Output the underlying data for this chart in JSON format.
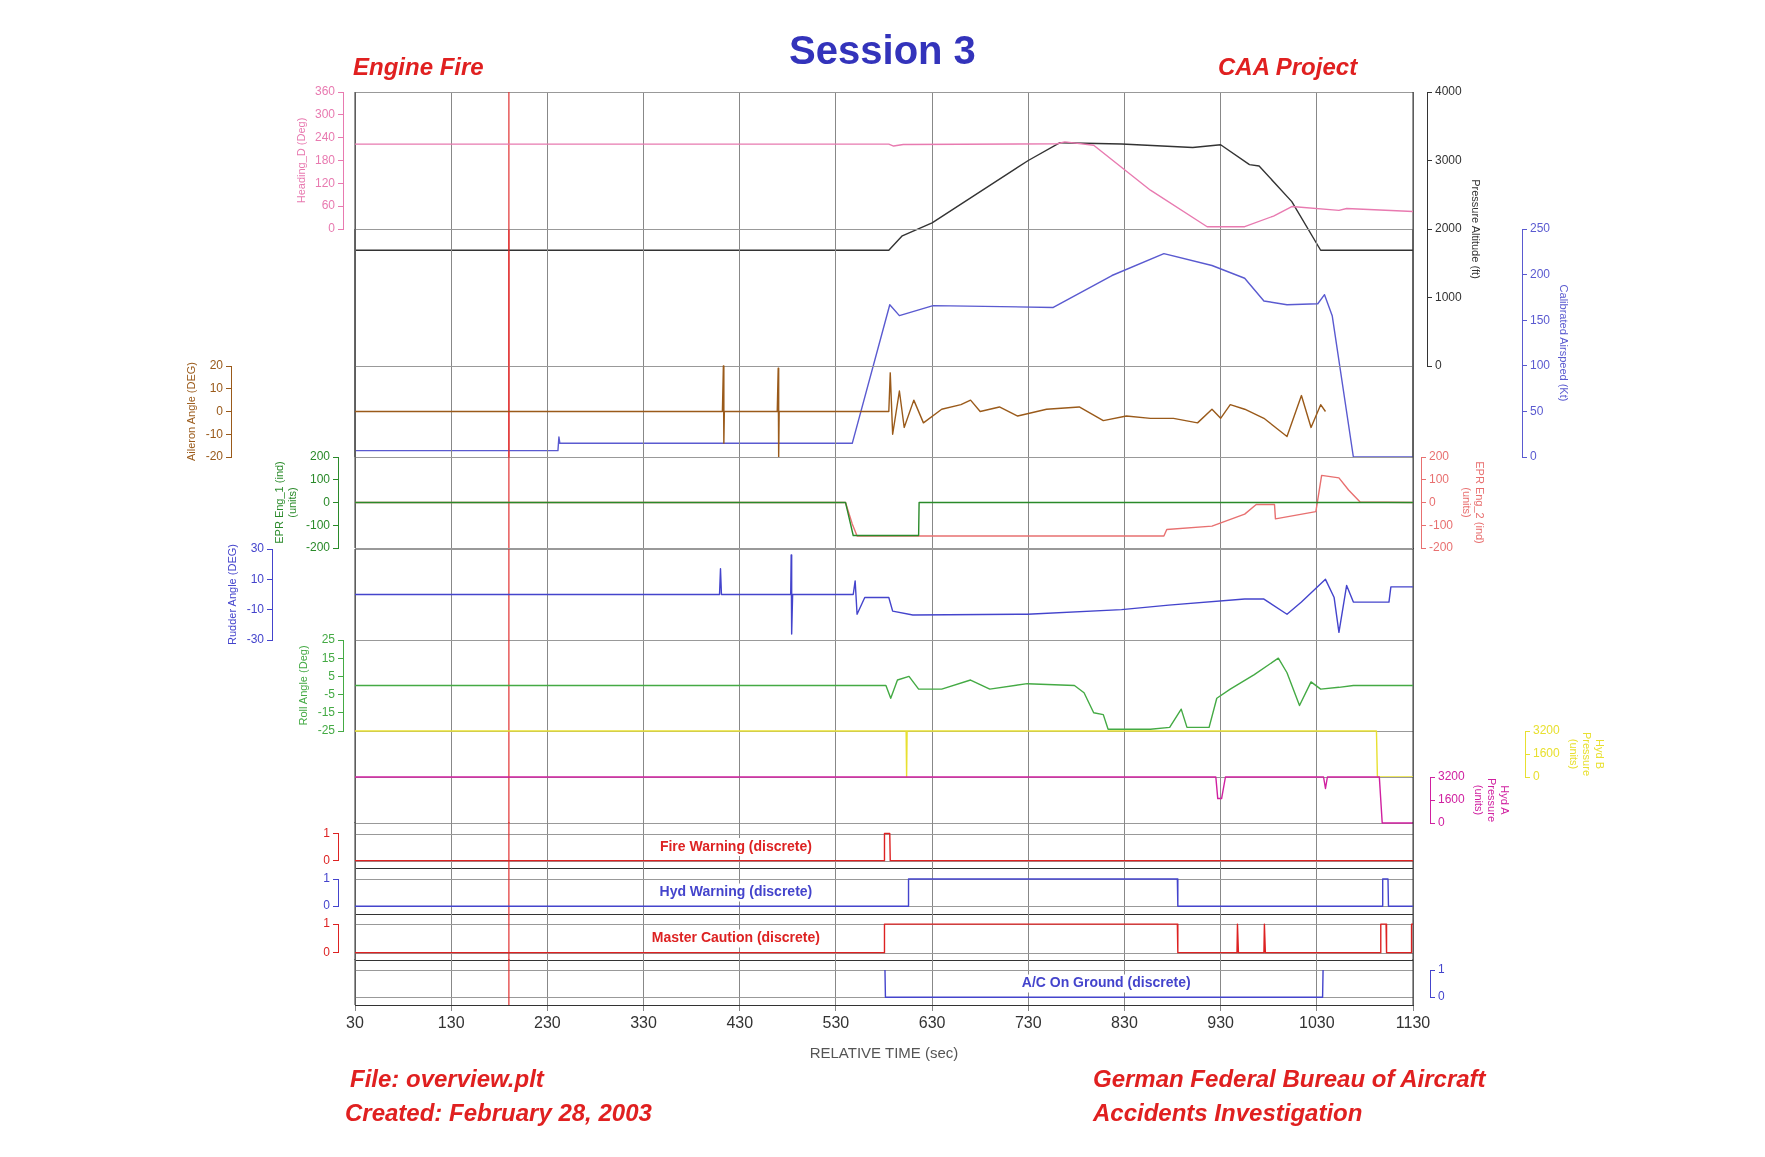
{
  "chart_data": [
    {
      "type": "line",
      "title": "Session 3",
      "annotations": [
        "Engine Fire",
        "CAA Project",
        "File: overview.plt",
        "Created: February 28, 2003",
        "German Federal Bureau of Aircraft Accidents Investigation"
      ],
      "ylabel": "Heading_D (Deg)",
      "y2label": "Pressure Altitude (ft)",
      "xlim": [
        30,
        1130
      ],
      "xticks": [
        30,
        130,
        230,
        330,
        430,
        530,
        630,
        730,
        830,
        930,
        1030,
        1130
      ],
      "tick_labels": "y",
      "ylim": [
        0,
        360
      ],
      "yticks": [
        0,
        60,
        120,
        180,
        240,
        300,
        360
      ],
      "y2lim": [
        0,
        4000
      ],
      "y2ticks": [
        0,
        1000,
        2000,
        3000,
        4000
      ],
      "grid": true,
      "marker": "none",
      "ref_lines": [
        {
          "axis": "x",
          "value": 190,
          "color": "#e03030"
        }
      ],
      "series": [
        {
          "axis": "y",
          "color": "#e87ab0",
          "x": [
            30,
            585,
            590,
            600,
            760,
            768,
            798,
            857,
            916,
            955,
            985,
            1004,
            1053,
            1061,
            1130
          ],
          "values": [
            223,
            223,
            218,
            222,
            224,
            229,
            220,
            102,
            6,
            6,
            34,
            59,
            49,
            54,
            46
          ]
        },
        {
          "axis": "y2",
          "color": "#333333",
          "x": [
            30,
            585,
            599,
            630,
            730,
            763,
            827,
            901,
            930,
            960,
            970,
            1004,
            1034,
            1130
          ],
          "values": [
            1690,
            1690,
            1900,
            2090,
            3000,
            3260,
            3240,
            3190,
            3230,
            2940,
            2920,
            2400,
            1690,
            1690
          ]
        }
      ]
    },
    {
      "type": "line",
      "y2label": "Calibrated Airspeed (Kt)",
      "xlim": [
        30,
        1130
      ],
      "xticks": [
        30,
        130,
        230,
        330,
        430,
        530,
        630,
        730,
        830,
        930,
        1030,
        1130
      ],
      "tick_labels": "y",
      "y2lim": [
        0,
        250
      ],
      "y2ticks": [
        0,
        50,
        100,
        150,
        200,
        250
      ],
      "grid": true,
      "marker": "none",
      "ref_lines": [
        {
          "axis": "x",
          "value": 190,
          "color": "#e03030"
        }
      ],
      "series": [
        {
          "axis": "y2",
          "color": "#5a5ad0",
          "x": [
            30,
            241,
            242,
            243,
            547,
            586,
            596,
            631,
            756,
            817,
            871,
            921,
            955,
            975,
            999,
            1031,
            1038,
            1046,
            1068,
            1130
          ],
          "values": [
            7,
            7,
            22,
            15,
            15,
            167,
            155,
            166,
            164,
            199,
            223,
            210,
            196,
            171,
            167,
            168,
            178,
            155,
            0,
            0
          ]
        }
      ]
    },
    {
      "type": "line",
      "ylabel": "Aileron Angle (DEG)",
      "xlim": [
        30,
        1130
      ],
      "xticks": [
        30,
        130,
        230,
        330,
        430,
        530,
        630,
        730,
        830,
        930,
        1030,
        1130
      ],
      "tick_labels": "y",
      "ylim": [
        -20,
        20
      ],
      "yticks": [
        -20,
        -10,
        0,
        10,
        20
      ],
      "grid": true,
      "marker": "none",
      "ref_lines": [
        {
          "axis": "x",
          "value": 190,
          "color": "#e03030"
        }
      ],
      "series": [
        {
          "axis": "y",
          "color": "#9a5a1a",
          "x": [
            30,
            412,
            413,
            413.5,
            414,
            469,
            470,
            470.5,
            471,
            585,
            586.5,
            589,
            596,
            601,
            611,
            621,
            640,
            660,
            670,
            680,
            700,
            719,
            749,
            783,
            808,
            832,
            857,
            881,
            906,
            921,
            930,
            940,
            955,
            975,
            999,
            1014,
            1024,
            1034,
            1039
          ],
          "values": [
            0,
            0,
            20,
            -14,
            0,
            0,
            19,
            -20,
            0,
            0,
            17,
            -10,
            9,
            -7,
            5,
            -5,
            1,
            3,
            5,
            0,
            2,
            -2,
            1,
            2,
            -4,
            -2,
            -3,
            -3,
            -5,
            1,
            -3,
            3,
            1,
            -3,
            -11,
            7,
            -7,
            3,
            0
          ]
        }
      ]
    },
    {
      "type": "line",
      "ylabel": "EPR Eng_1 (ind) (units)",
      "y2label": "EPR Eng_2 (ind) (units)",
      "xlim": [
        30,
        1130
      ],
      "xticks": [
        30,
        130,
        230,
        330,
        430,
        530,
        630,
        730,
        830,
        930,
        1030,
        1130
      ],
      "tick_labels": "y",
      "ylim": [
        -200,
        200
      ],
      "yticks": [
        -200,
        -100,
        0,
        100,
        200
      ],
      "y2lim": [
        -200,
        200
      ],
      "y2ticks": [
        -200,
        -100,
        0,
        100,
        200
      ],
      "grid": true,
      "marker": "none",
      "ref_lines": [
        {
          "axis": "x",
          "value": 190,
          "color": "#e03030"
        }
      ],
      "series": [
        {
          "axis": "y",
          "color": "#2a8a2a",
          "x": [
            30,
            540,
            548,
            616,
            616.5,
            1130
          ],
          "values": [
            0,
            0,
            -145,
            -145,
            0,
            0
          ]
        },
        {
          "axis": "y2",
          "color": "#e87070",
          "x": [
            30,
            540,
            547,
            552,
            871,
            874,
            921,
            955,
            967,
            986,
            987,
            1029,
            1035,
            1053,
            1063,
            1075,
            1130
          ],
          "values": [
            0,
            0,
            -94,
            -147,
            -147,
            -119,
            -104,
            -51,
            -9,
            -9,
            -72,
            -40,
            119,
            108,
            55,
            2,
            0
          ]
        }
      ]
    },
    {
      "type": "line",
      "ylabel": "Rudder Angle (DEG)",
      "xlim": [
        30,
        1130
      ],
      "xticks": [
        30,
        130,
        230,
        330,
        430,
        530,
        630,
        730,
        830,
        930,
        1030,
        1130
      ],
      "tick_labels": "y",
      "ylim": [
        -30,
        30
      ],
      "yticks": [
        -30,
        -10,
        10,
        30
      ],
      "grid": true,
      "marker": "none",
      "ref_lines": [
        {
          "axis": "x",
          "value": 190,
          "color": "#e03030"
        }
      ],
      "series": [
        {
          "axis": "y",
          "color": "#4444cc",
          "x": [
            30,
            409,
            410,
            411,
            483,
            483.5,
            484,
            485,
            548,
            550,
            552,
            560,
            585,
            589,
            610,
            729,
            827,
            876,
            955,
            975,
            999,
            1014,
            1039,
            1048,
            1053,
            1061,
            1068,
            1105,
            1107,
            1130
          ],
          "values": [
            0,
            0,
            17,
            0,
            0,
            26,
            -26,
            0,
            0,
            9,
            -13,
            -2,
            -2,
            -11,
            -13.5,
            -13,
            -10,
            -7,
            -3,
            -3,
            -13,
            -5,
            10,
            -2,
            -25,
            6,
            -5,
            -5,
            5,
            5
          ]
        }
      ]
    },
    {
      "type": "line",
      "ylabel": "Roll Angle (Deg)",
      "xlim": [
        30,
        1130
      ],
      "xticks": [
        30,
        130,
        230,
        330,
        430,
        530,
        630,
        730,
        830,
        930,
        1030,
        1130
      ],
      "tick_labels": "y",
      "ylim": [
        -25,
        25
      ],
      "yticks": [
        -25,
        -15,
        -5,
        5,
        15,
        25
      ],
      "grid": true,
      "marker": "none",
      "ref_lines": [
        {
          "axis": "x",
          "value": 190,
          "color": "#e03030"
        }
      ],
      "series": [
        {
          "axis": "y",
          "color": "#44aa44",
          "x": [
            30,
            582,
            587,
            594,
            606,
            616,
            640,
            670,
            690,
            729,
            778,
            788,
            798,
            808,
            813,
            857,
            877,
            889,
            895,
            918,
            926,
            940,
            965,
            990,
            999,
            1012,
            1024,
            1034,
            1053,
            1068,
            1130
          ],
          "values": [
            0,
            0,
            -7,
            3,
            5,
            -2,
            -2,
            3,
            -2,
            1,
            0,
            -4,
            -15,
            -16,
            -24,
            -24,
            -23,
            -13,
            -23,
            -23,
            -7,
            -2,
            6,
            15,
            7,
            -11,
            2,
            -2,
            -1,
            0,
            0
          ]
        }
      ]
    },
    {
      "type": "line",
      "y2label": "Hyd B Pressure (units)",
      "xlim": [
        30,
        1130
      ],
      "xticks": [
        30,
        130,
        230,
        330,
        430,
        530,
        630,
        730,
        830,
        930,
        1030,
        1130
      ],
      "tick_labels": "y",
      "y2lim": [
        0,
        3200
      ],
      "y2ticks": [
        0,
        1600,
        3200
      ],
      "grid": true,
      "marker": "none",
      "ref_lines": [
        {
          "axis": "x",
          "value": 190,
          "color": "#e03030"
        }
      ],
      "series": [
        {
          "axis": "y2",
          "color": "#e8e030",
          "x": [
            30,
            603,
            603.5,
            604,
            1092,
            1093,
            1130
          ],
          "values": [
            3200,
            3200,
            0,
            3200,
            3200,
            0,
            0
          ]
        }
      ]
    },
    {
      "type": "line",
      "y2label": "Hyd A Pressure (units)",
      "xlim": [
        30,
        1130
      ],
      "xticks": [
        30,
        130,
        230,
        330,
        430,
        530,
        630,
        730,
        830,
        930,
        1030,
        1130
      ],
      "tick_labels": "y",
      "y2lim": [
        0,
        3200
      ],
      "y2ticks": [
        0,
        1600,
        3200
      ],
      "grid": true,
      "marker": "none",
      "ref_lines": [
        {
          "axis": "x",
          "value": 190,
          "color": "#e03030"
        }
      ],
      "series": [
        {
          "axis": "y2",
          "color": "#d020a0",
          "x": [
            30,
            925,
            927,
            931,
            935,
            1037,
            1039,
            1041,
            1095,
            1098,
            1130
          ],
          "values": [
            3200,
            3200,
            1700,
            1700,
            3200,
            3200,
            2400,
            3200,
            3200,
            0,
            0
          ]
        }
      ]
    },
    {
      "type": "line",
      "xlim": [
        30,
        1130
      ],
      "xticks": [
        30,
        130,
        230,
        330,
        430,
        530,
        630,
        730,
        830,
        930,
        1030,
        1130
      ],
      "tick_labels": "y",
      "ylim": [
        0,
        1
      ],
      "yticks": [
        0,
        1
      ],
      "grid": true,
      "marker": "none",
      "ref_lines": [
        {
          "axis": "x",
          "value": 190,
          "color": "#e03030"
        }
      ],
      "series": [
        {
          "axis": "y",
          "name": "Fire Warning (discrete)",
          "color": "#dd2222",
          "x": [
            30,
            580,
            580.5,
            586,
            586.5,
            1130
          ],
          "values": [
            0,
            0,
            1,
            1,
            0,
            0
          ]
        }
      ]
    },
    {
      "type": "line",
      "xlim": [
        30,
        1130
      ],
      "xticks": [
        30,
        130,
        230,
        330,
        430,
        530,
        630,
        730,
        830,
        930,
        1030,
        1130
      ],
      "tick_labels": "y",
      "ylim": [
        0,
        1
      ],
      "yticks": [
        0,
        1
      ],
      "grid": true,
      "marker": "none",
      "ref_lines": [
        {
          "axis": "x",
          "value": 190,
          "color": "#e03030"
        }
      ],
      "series": [
        {
          "axis": "y",
          "name": "Hyd Warning (discrete)",
          "color": "#4444cc",
          "x": [
            30,
            605,
            605.5,
            885,
            885.5,
            1098,
            1098.5,
            1104,
            1104.5,
            1130
          ],
          "values": [
            0,
            0,
            1,
            1,
            0,
            0,
            1,
            1,
            0,
            0
          ]
        }
      ]
    },
    {
      "type": "line",
      "xlim": [
        30,
        1130
      ],
      "xticks": [
        30,
        130,
        230,
        330,
        430,
        530,
        630,
        730,
        830,
        930,
        1030,
        1130
      ],
      "tick_labels": "y",
      "ylim": [
        0,
        1
      ],
      "yticks": [
        0,
        1
      ],
      "grid": true,
      "marker": "none",
      "ref_lines": [
        {
          "axis": "x",
          "value": 190,
          "color": "#e03030"
        }
      ],
      "series": [
        {
          "axis": "y",
          "name": "Master Caution (discrete)",
          "color": "#dd2222",
          "x": [
            30,
            580,
            580.5,
            885,
            885.5,
            947,
            947.5,
            948,
            948.5,
            975,
            975.5,
            976,
            976.5,
            1096,
            1096.5,
            1102,
            1102.5,
            1128,
            1128.5,
            1130
          ],
          "values": [
            0,
            0,
            1,
            1,
            0,
            0,
            1,
            1,
            0,
            0,
            1,
            1,
            0,
            0,
            1,
            1,
            0,
            0,
            1,
            1
          ]
        }
      ]
    },
    {
      "type": "line",
      "xlabel": "RELATIVE TIME (sec)",
      "xlim": [
        30,
        1130
      ],
      "xticks": [
        30,
        130,
        230,
        330,
        430,
        530,
        630,
        730,
        830,
        930,
        1030,
        1130
      ],
      "y2lim": [
        0,
        1
      ],
      "y2ticks": [
        0,
        1
      ],
      "grid": true,
      "marker": "none",
      "ref_lines": [
        {
          "axis": "x",
          "value": 190,
          "color": "#e03030"
        }
      ],
      "series": [
        {
          "axis": "y2",
          "name": "A/C On Ground (discrete)",
          "color": "#4444cc",
          "x": [
            581,
            581.5,
            1036,
            1036.5
          ],
          "values": [
            1,
            0,
            0,
            1
          ]
        }
      ]
    }
  ]
}
